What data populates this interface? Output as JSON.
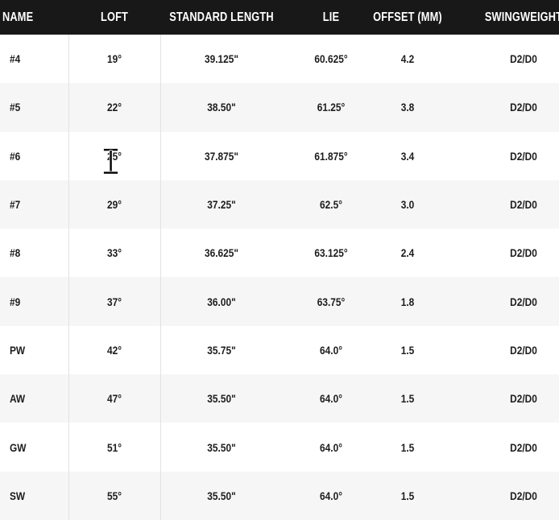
{
  "table": {
    "columns": [
      {
        "id": "name",
        "label": "NAME",
        "align": "left"
      },
      {
        "id": "loft",
        "label": "LOFT",
        "align": "center"
      },
      {
        "id": "length",
        "label": "STANDARD LENGTH",
        "align": "center"
      },
      {
        "id": "lie",
        "label": "LIE",
        "align": "center"
      },
      {
        "id": "offset",
        "label": "OFFSET (MM)",
        "align": "center"
      },
      {
        "id": "swingweight",
        "label": "SWINGWEIGHT",
        "align": "center"
      }
    ],
    "rows": [
      {
        "name": "#4",
        "loft": "19°",
        "length": "39.125\"",
        "lie": "60.625°",
        "offset": "4.2",
        "swingweight": "D2/D0"
      },
      {
        "name": "#5",
        "loft": "22°",
        "length": "38.50\"",
        "lie": "61.25°",
        "offset": "3.8",
        "swingweight": "D2/D0"
      },
      {
        "name": "#6",
        "loft": "25°",
        "length": "37.875\"",
        "lie": "61.875°",
        "offset": "3.4",
        "swingweight": "D2/D0"
      },
      {
        "name": "#7",
        "loft": "29°",
        "length": "37.25\"",
        "lie": "62.5°",
        "offset": "3.0",
        "swingweight": "D2/D0"
      },
      {
        "name": "#8",
        "loft": "33°",
        "length": "36.625\"",
        "lie": "63.125°",
        "offset": "2.4",
        "swingweight": "D2/D0"
      },
      {
        "name": "#9",
        "loft": "37°",
        "length": "36.00\"",
        "lie": "63.75°",
        "offset": "1.8",
        "swingweight": "D2/D0"
      },
      {
        "name": "PW",
        "loft": "42°",
        "length": "35.75\"",
        "lie": "64.0°",
        "offset": "1.5",
        "swingweight": "D2/D0"
      },
      {
        "name": "AW",
        "loft": "47°",
        "length": "35.50\"",
        "lie": "64.0°",
        "offset": "1.5",
        "swingweight": "D2/D0"
      },
      {
        "name": "GW",
        "loft": "51°",
        "length": "35.50\"",
        "lie": "64.0°",
        "offset": "1.5",
        "swingweight": "D2/D0"
      },
      {
        "name": "SW",
        "loft": "55°",
        "length": "35.50\"",
        "lie": "64.0°",
        "offset": "1.5",
        "swingweight": "D2/D0"
      }
    ]
  },
  "cursor": {
    "type": "text-ibeam",
    "over_cell": "#6 loft"
  },
  "colors": {
    "header_bg": "#181818",
    "header_text": "#ffffff",
    "row_bg": "#ffffff",
    "row_alt_bg": "#f6f6f6",
    "body_text": "#1d1d1d",
    "divider": "#e2e2e2"
  }
}
